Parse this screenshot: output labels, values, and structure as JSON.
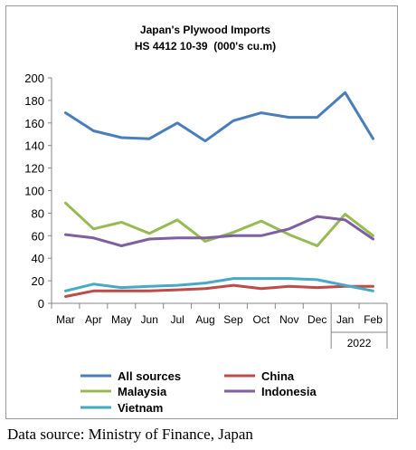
{
  "chart_data": {
    "type": "line",
    "title": "Japan's Plywood Imports",
    "subtitle": "HS 4412 10-39  (000's cu.m)",
    "xlabel": "",
    "ylabel": "",
    "categories": [
      "Mar",
      "Apr",
      "May",
      "Jun",
      "Jul",
      "Aug",
      "Sep",
      "Oct",
      "Nov",
      "Dec",
      "Jan",
      "Feb"
    ],
    "year_label": "2022",
    "ylim": [
      0,
      200
    ],
    "yticks": [
      "0",
      "20",
      "40",
      "60",
      "80",
      "100",
      "120",
      "140",
      "160",
      "180",
      "200"
    ],
    "grid": false,
    "legend_position": "bottom",
    "series": [
      {
        "name": "All sources",
        "color": "#4a7ebb",
        "values": [
          169,
          153,
          147,
          146,
          160,
          144,
          162,
          169,
          165,
          165,
          187,
          146
        ]
      },
      {
        "name": "China",
        "color": "#be4b48",
        "values": [
          6,
          11,
          11,
          11,
          12,
          13,
          16,
          13,
          15,
          14,
          15,
          15
        ]
      },
      {
        "name": "Malaysia",
        "color": "#98b954",
        "values": [
          89,
          66,
          72,
          62,
          74,
          55,
          63,
          73,
          61,
          51,
          79,
          60
        ]
      },
      {
        "name": "Indonesia",
        "color": "#7d60a0",
        "values": [
          61,
          58,
          51,
          57,
          58,
          58,
          60,
          60,
          66,
          77,
          74,
          57
        ]
      },
      {
        "name": "Vietnam",
        "color": "#46aac5",
        "values": [
          11,
          17,
          14,
          15,
          16,
          18,
          22,
          22,
          22,
          21,
          16,
          11
        ]
      }
    ]
  },
  "source": "Data source: Ministry of Finance, Japan"
}
